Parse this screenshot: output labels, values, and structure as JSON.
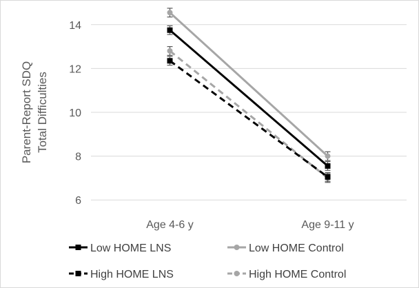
{
  "chart_data": {
    "type": "line",
    "title": "",
    "ylabel_lines": [
      "Parent-Report SDQ",
      "Total Difficulties"
    ],
    "xlabel": "",
    "categories": [
      "Age 4-6 y",
      "Age 9-11 y"
    ],
    "ylim": [
      5,
      15
    ],
    "yticks": [
      6,
      8,
      10,
      12,
      14
    ],
    "grid": true,
    "legend_position": "bottom",
    "series": [
      {
        "name": "Low HOME LNS",
        "values": [
          13.75,
          7.55
        ],
        "errors": [
          0.2,
          0.2
        ],
        "color": "#000000",
        "dashed": false,
        "marker": "square"
      },
      {
        "name": "Low HOME Control",
        "values": [
          14.55,
          8.0
        ],
        "errors": [
          0.2,
          0.2
        ],
        "color": "#a6a6a6",
        "dashed": false,
        "marker": "circle"
      },
      {
        "name": "High HOME LNS",
        "values": [
          12.35,
          7.05
        ],
        "errors": [
          0.2,
          0.2
        ],
        "color": "#000000",
        "dashed": true,
        "marker": "square"
      },
      {
        "name": "High HOME Control",
        "values": [
          12.8,
          7.0
        ],
        "errors": [
          0.2,
          0.2
        ],
        "color": "#a6a6a6",
        "dashed": true,
        "marker": "circle"
      }
    ]
  }
}
